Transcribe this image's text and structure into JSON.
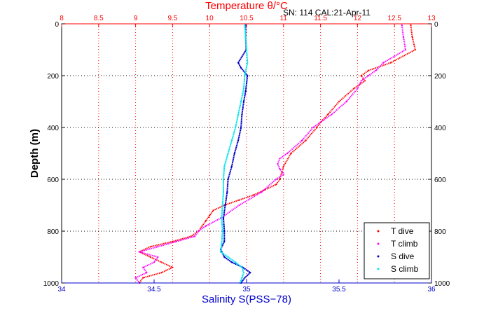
{
  "chart_data": {
    "type": "line",
    "title": "Temperature θ/°C",
    "header_text": "SN: 114  CAL:21-Apr-11",
    "xlabel_top": "Temperature θ/°C",
    "xlabel_bottom": "Salinity S(PSS−78)",
    "ylabel": "Depth (m)",
    "x_top_lim": [
      8,
      13
    ],
    "x_top_ticks": [
      "8",
      "8.5",
      "9",
      "9.5",
      "10",
      "10.5",
      "11",
      "11.5",
      "12",
      "12.5",
      "13"
    ],
    "x_bottom_lim": [
      34,
      36
    ],
    "x_bottom_ticks": [
      "34",
      "34.5",
      "35",
      "35.5",
      "36"
    ],
    "y_lim": [
      0,
      1000
    ],
    "y_reversed": true,
    "y_ticks": [
      "0",
      "200",
      "400",
      "600",
      "800",
      "1000"
    ],
    "grid": true,
    "legend_position": "bottom-right",
    "colors": {
      "t_dive": "#ff0000",
      "t_climb": "#ff00ff",
      "s_dive": "#0000cc",
      "s_climb": "#00e5ee",
      "top_axis": "#ff0000",
      "bottom_axis": "#0000cc"
    },
    "series": [
      {
        "name": "T dive",
        "axis": "temperature",
        "color": "#ff0000",
        "depth": [
          5,
          50,
          100,
          150,
          180,
          200,
          220,
          250,
          300,
          350,
          380,
          400,
          450,
          500,
          550,
          600,
          620,
          640,
          660,
          680,
          700,
          720,
          740,
          760,
          780,
          800,
          820,
          840,
          860,
          880,
          900,
          920,
          940,
          960,
          980,
          1000
        ],
        "values": [
          12.72,
          12.74,
          12.78,
          12.45,
          12.15,
          12.05,
          12.1,
          11.95,
          11.75,
          11.6,
          11.5,
          11.45,
          11.3,
          11.1,
          11.0,
          10.95,
          10.9,
          10.75,
          10.6,
          10.4,
          10.2,
          10.05,
          10.0,
          9.95,
          9.9,
          9.85,
          9.75,
          9.5,
          9.2,
          9.05,
          9.2,
          9.35,
          9.5,
          9.35,
          9.1,
          9.05
        ]
      },
      {
        "name": "T climb",
        "axis": "temperature",
        "color": "#ff00ff",
        "depth": [
          5,
          50,
          100,
          150,
          180,
          200,
          220,
          250,
          300,
          350,
          400,
          450,
          500,
          520,
          540,
          560,
          580,
          600,
          650,
          700,
          750,
          780,
          800,
          820,
          840,
          860,
          880,
          900,
          920,
          940,
          960,
          980,
          1000
        ],
        "values": [
          12.6,
          12.62,
          12.65,
          12.35,
          12.25,
          12.15,
          12.05,
          12.0,
          11.85,
          11.65,
          11.4,
          11.25,
          11.05,
          10.95,
          10.92,
          10.95,
          11.0,
          10.9,
          10.7,
          10.4,
          10.15,
          9.95,
          9.85,
          9.8,
          9.55,
          9.3,
          9.05,
          9.3,
          9.25,
          9.1,
          9.15,
          9.0,
          9.05
        ]
      },
      {
        "name": "S dive",
        "axis": "salinity",
        "color": "#0000cc",
        "depth": [
          5,
          50,
          100,
          150,
          170,
          200,
          230,
          260,
          300,
          350,
          400,
          450,
          500,
          550,
          600,
          650,
          700,
          750,
          800,
          840,
          870,
          900,
          920,
          940,
          960,
          980,
          1000
        ],
        "values": [
          34.995,
          34.995,
          34.998,
          34.955,
          34.97,
          35.005,
          35.0,
          34.995,
          34.985,
          34.975,
          34.97,
          34.955,
          34.935,
          34.92,
          34.9,
          34.895,
          34.885,
          34.875,
          34.88,
          34.88,
          34.86,
          34.88,
          34.92,
          34.98,
          35.02,
          34.99,
          34.97
        ]
      },
      {
        "name": "S climb",
        "axis": "salinity",
        "color": "#00e5ee",
        "depth": [
          5,
          50,
          100,
          150,
          200,
          250,
          300,
          350,
          400,
          450,
          500,
          550,
          600,
          650,
          700,
          750,
          800,
          850,
          880,
          900,
          920,
          940,
          960,
          980,
          1000
        ],
        "values": [
          34.99,
          34.995,
          35.0,
          35.005,
          34.99,
          34.985,
          34.97,
          34.955,
          34.94,
          34.92,
          34.9,
          34.88,
          34.875,
          34.875,
          34.87,
          34.865,
          34.87,
          34.865,
          34.86,
          34.9,
          34.94,
          34.975,
          34.985,
          34.975,
          34.965
        ]
      }
    ]
  }
}
